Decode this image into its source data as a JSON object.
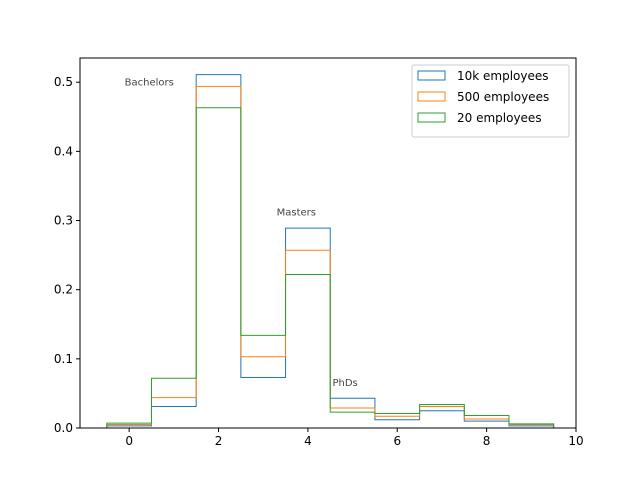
{
  "chart_data": {
    "type": "step-histogram",
    "bin_edges": [
      -0.5,
      0.5,
      1.5,
      2.5,
      3.5,
      4.5,
      5.5,
      6.5,
      7.5,
      8.5,
      9.5
    ],
    "series": [
      {
        "name": "10k employees",
        "color": "#1f77b4",
        "values": [
          0.003,
          0.031,
          0.511,
          0.073,
          0.289,
          0.043,
          0.012,
          0.025,
          0.01,
          0.003
        ]
      },
      {
        "name": "500 employees",
        "color": "#ff7f0e",
        "values": [
          0.005,
          0.044,
          0.494,
          0.103,
          0.257,
          0.029,
          0.017,
          0.031,
          0.013,
          0.005
        ]
      },
      {
        "name": "20 employees",
        "color": "#2ca02c",
        "values": [
          0.007,
          0.072,
          0.463,
          0.134,
          0.222,
          0.023,
          0.021,
          0.034,
          0.018,
          0.006
        ]
      }
    ],
    "xlim": [
      -1.1,
      10
    ],
    "ylim": [
      0,
      0.535
    ],
    "xticks": [
      0,
      2,
      4,
      6,
      8,
      10
    ],
    "yticks": [
      0.0,
      0.1,
      0.2,
      0.3,
      0.4,
      0.5
    ],
    "xtick_labels": [
      "0",
      "2",
      "4",
      "6",
      "8",
      "10"
    ],
    "ytick_labels": [
      "0.0",
      "0.1",
      "0.2",
      "0.3",
      "0.4",
      "0.5"
    ],
    "annotations": [
      {
        "text": "Bachelors",
        "x": -0.1,
        "y": 0.495
      },
      {
        "text": "Masters",
        "x": 3.3,
        "y": 0.307
      },
      {
        "text": "PhDs",
        "x": 4.55,
        "y": 0.061
      }
    ],
    "legend_position": "upper right",
    "grid": false
  }
}
